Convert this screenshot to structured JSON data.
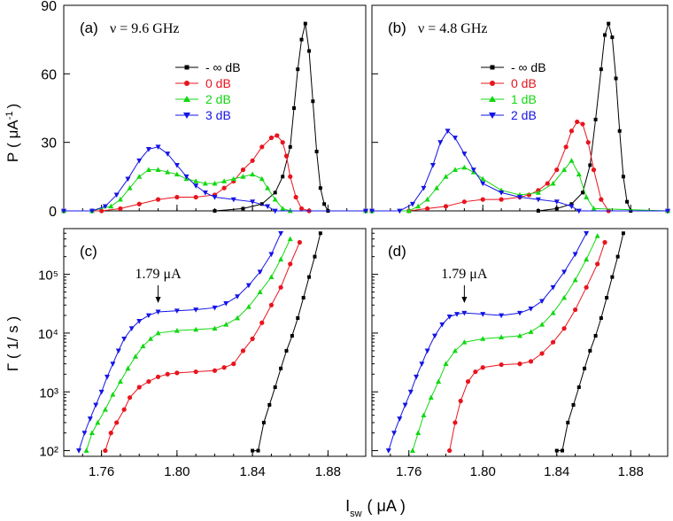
{
  "figure": {
    "shared_xlabel": "I",
    "shared_xlabel_sub": "sw",
    "shared_xlabel_unit": "( μA )",
    "top_ylabel": "P",
    "top_ylabel_unit_open": "( μA",
    "top_ylabel_unit_sup": "-1",
    "top_ylabel_unit_close": ")",
    "bottom_ylabel": "Γ ( 1/ s )",
    "colors": {
      "-inf": "#000000",
      "p0": "#e8141e",
      "p1": "#12d812",
      "p2": "#1414e6"
    }
  },
  "chart_data": [
    {
      "id": "a",
      "type": "line",
      "panel_label": "(a)",
      "freq_label": "ν = 9.6 GHz",
      "xlim": [
        1.74,
        1.9
      ],
      "ylim": [
        0,
        90
      ],
      "yticks": [
        "0",
        "30",
        "60",
        "90"
      ],
      "xticks": [],
      "legend_position": "upper-center",
      "series": [
        {
          "name": "- ∞ dB",
          "color": "#000000",
          "marker": "square",
          "x": [
            1.74,
            1.82,
            1.835,
            1.845,
            1.852,
            1.856,
            1.86,
            1.862,
            1.864,
            1.866,
            1.868,
            1.87,
            1.872,
            1.874,
            1.876,
            1.878,
            1.88,
            1.9
          ],
          "y": [
            0,
            0,
            1,
            3,
            8,
            15,
            28,
            45,
            62,
            75,
            82,
            70,
            48,
            26,
            10,
            3,
            0,
            0
          ]
        },
        {
          "name": "0 dB",
          "color": "#e8141e",
          "marker": "circle",
          "x": [
            1.74,
            1.76,
            1.77,
            1.78,
            1.79,
            1.8,
            1.81,
            1.82,
            1.825,
            1.83,
            1.835,
            1.84,
            1.845,
            1.85,
            1.853,
            1.856,
            1.858,
            1.86,
            1.863,
            1.866,
            1.87,
            1.9
          ],
          "y": [
            0,
            0,
            1,
            3,
            5,
            6,
            6,
            7,
            10,
            13,
            18,
            22,
            28,
            32,
            33,
            30,
            24,
            15,
            6,
            1,
            0,
            0
          ]
        },
        {
          "name": "2 dB",
          "color": "#12d812",
          "marker": "triangle-up",
          "x": [
            1.74,
            1.755,
            1.765,
            1.77,
            1.775,
            1.78,
            1.785,
            1.79,
            1.795,
            1.8,
            1.805,
            1.81,
            1.815,
            1.82,
            1.825,
            1.83,
            1.835,
            1.84,
            1.845,
            1.848,
            1.852,
            1.856,
            1.86,
            1.9
          ],
          "y": [
            0,
            0,
            2,
            5,
            10,
            15,
            18,
            18,
            17,
            16,
            14,
            13,
            12,
            12,
            13,
            14,
            15,
            16,
            14,
            10,
            5,
            1,
            0,
            0
          ]
        },
        {
          "name": "3 dB",
          "color": "#1414e6",
          "marker": "triangle-down",
          "x": [
            1.74,
            1.755,
            1.762,
            1.768,
            1.774,
            1.78,
            1.785,
            1.79,
            1.795,
            1.8,
            1.805,
            1.81,
            1.815,
            1.82,
            1.83,
            1.84,
            1.848,
            1.852,
            1.9
          ],
          "y": [
            0,
            0,
            2,
            7,
            14,
            22,
            27,
            28,
            25,
            20,
            15,
            11,
            8,
            6,
            5,
            4,
            2,
            0,
            0
          ]
        }
      ]
    },
    {
      "id": "b",
      "type": "line",
      "panel_label": "(b)",
      "freq_label": "ν = 4.8 GHz",
      "xlim": [
        1.74,
        1.9
      ],
      "ylim": [
        0,
        90
      ],
      "yticks": [],
      "xticks": [],
      "legend_position": "upper-right",
      "series": [
        {
          "name": "- ∞ dB",
          "color": "#000000",
          "marker": "square",
          "x": [
            1.74,
            1.83,
            1.84,
            1.848,
            1.854,
            1.858,
            1.861,
            1.864,
            1.866,
            1.868,
            1.87,
            1.872,
            1.874,
            1.876,
            1.878,
            1.88,
            1.9
          ],
          "y": [
            0,
            0,
            1,
            3,
            8,
            20,
            40,
            62,
            77,
            82,
            76,
            58,
            35,
            15,
            4,
            0,
            0
          ]
        },
        {
          "name": "0 dB",
          "color": "#e8141e",
          "marker": "circle",
          "x": [
            1.74,
            1.76,
            1.77,
            1.78,
            1.79,
            1.8,
            1.81,
            1.82,
            1.825,
            1.83,
            1.835,
            1.84,
            1.845,
            1.848,
            1.851,
            1.854,
            1.857,
            1.86,
            1.864,
            1.868,
            1.9
          ],
          "y": [
            0,
            0,
            1,
            2,
            4,
            5,
            5,
            6,
            7,
            9,
            12,
            18,
            28,
            35,
            39,
            38,
            30,
            18,
            5,
            0,
            0
          ]
        },
        {
          "name": "1 dB",
          "color": "#12d812",
          "marker": "triangle-up",
          "x": [
            1.74,
            1.76,
            1.765,
            1.77,
            1.775,
            1.78,
            1.785,
            1.79,
            1.795,
            1.8,
            1.81,
            1.82,
            1.83,
            1.838,
            1.844,
            1.848,
            1.852,
            1.856,
            1.86,
            1.9
          ],
          "y": [
            0,
            0,
            2,
            5,
            10,
            15,
            18,
            19,
            17,
            14,
            9,
            7,
            8,
            12,
            18,
            22,
            16,
            6,
            1,
            0
          ]
        },
        {
          "name": "2 dB",
          "color": "#1414e6",
          "marker": "triangle-down",
          "x": [
            1.74,
            1.755,
            1.762,
            1.768,
            1.773,
            1.777,
            1.781,
            1.785,
            1.79,
            1.795,
            1.8,
            1.81,
            1.82,
            1.83,
            1.84,
            1.848,
            1.852,
            1.9
          ],
          "y": [
            0,
            0,
            3,
            10,
            20,
            30,
            35,
            32,
            25,
            18,
            12,
            8,
            6,
            5,
            4,
            2,
            0,
            0
          ]
        }
      ]
    },
    {
      "id": "c",
      "type": "line",
      "scale": "log",
      "panel_label": "(c)",
      "annotation": "1.79 μA",
      "annotation_x": 1.79,
      "xlim": [
        1.74,
        1.9
      ],
      "ylim": [
        80,
        600000
      ],
      "yticks": [
        "10²",
        "10³",
        "10⁴",
        "10⁵"
      ],
      "xticks": [
        "1.76",
        "1.80",
        "1.84",
        "1.88"
      ],
      "series": [
        {
          "name": "- ∞ dB",
          "color": "#000000",
          "marker": "square",
          "x": [
            1.84,
            1.843,
            1.846,
            1.849,
            1.852,
            1.855,
            1.858,
            1.861,
            1.864,
            1.867,
            1.87,
            1.873,
            1.876
          ],
          "y": [
            100,
            100,
            300,
            600,
            1200,
            2500,
            5000,
            9000,
            18000,
            40000,
            90000,
            200000,
            500000
          ]
        },
        {
          "name": "0 dB",
          "color": "#e8141e",
          "marker": "circle",
          "x": [
            1.762,
            1.765,
            1.768,
            1.772,
            1.775,
            1.78,
            1.785,
            1.79,
            1.795,
            1.8,
            1.81,
            1.82,
            1.825,
            1.83,
            1.835,
            1.84,
            1.845,
            1.85,
            1.855,
            1.86,
            1.865
          ],
          "y": [
            100,
            200,
            300,
            500,
            800,
            1200,
            1500,
            1800,
            2000,
            2100,
            2200,
            2300,
            2600,
            3000,
            5000,
            8000,
            15000,
            30000,
            60000,
            150000,
            350000
          ]
        },
        {
          "name": "2 dB",
          "color": "#12d812",
          "marker": "triangle-up",
          "x": [
            1.752,
            1.755,
            1.758,
            1.762,
            1.766,
            1.77,
            1.774,
            1.778,
            1.782,
            1.786,
            1.79,
            1.8,
            1.81,
            1.82,
            1.826,
            1.832,
            1.838,
            1.844,
            1.85,
            1.855,
            1.86
          ],
          "y": [
            100,
            200,
            300,
            500,
            900,
            1500,
            2500,
            4000,
            6000,
            8000,
            10000,
            11000,
            11500,
            12000,
            14000,
            18000,
            28000,
            50000,
            90000,
            180000,
            400000
          ]
        },
        {
          "name": "3 dB",
          "color": "#1414e6",
          "marker": "triangle-down",
          "x": [
            1.748,
            1.751,
            1.754,
            1.757,
            1.76,
            1.763,
            1.766,
            1.769,
            1.772,
            1.776,
            1.78,
            1.785,
            1.79,
            1.8,
            1.81,
            1.82,
            1.826,
            1.832,
            1.838,
            1.844,
            1.85,
            1.855
          ],
          "y": [
            100,
            200,
            350,
            600,
            1000,
            1800,
            3000,
            5000,
            8000,
            12000,
            16000,
            20000,
            23000,
            24000,
            25000,
            27000,
            32000,
            42000,
            65000,
            110000,
            220000,
            500000
          ]
        }
      ]
    },
    {
      "id": "d",
      "type": "line",
      "scale": "log",
      "panel_label": "(d)",
      "annotation": "1.79 μA",
      "annotation_x": 1.79,
      "xlim": [
        1.74,
        1.9
      ],
      "ylim": [
        80,
        600000
      ],
      "yticks": [],
      "xticks": [
        "1.76",
        "1.80",
        "1.84",
        "1.88"
      ],
      "series": [
        {
          "name": "- ∞ dB",
          "color": "#000000",
          "marker": "square",
          "x": [
            1.84,
            1.843,
            1.846,
            1.849,
            1.852,
            1.855,
            1.858,
            1.861,
            1.864,
            1.867,
            1.87,
            1.873,
            1.876
          ],
          "y": [
            100,
            100,
            300,
            600,
            1200,
            2500,
            5000,
            9000,
            18000,
            40000,
            90000,
            200000,
            500000
          ]
        },
        {
          "name": "0 dB",
          "color": "#e8141e",
          "marker": "circle",
          "x": [
            1.782,
            1.785,
            1.788,
            1.792,
            1.796,
            1.8,
            1.81,
            1.82,
            1.826,
            1.832,
            1.838,
            1.844,
            1.85,
            1.856,
            1.862,
            1.866
          ],
          "y": [
            100,
            300,
            700,
            1500,
            2200,
            2600,
            2900,
            3000,
            3300,
            4500,
            7000,
            12000,
            25000,
            60000,
            150000,
            350000
          ]
        },
        {
          "name": "1 dB",
          "color": "#12d812",
          "marker": "triangle-up",
          "x": [
            1.762,
            1.765,
            1.768,
            1.772,
            1.776,
            1.78,
            1.785,
            1.79,
            1.8,
            1.81,
            1.82,
            1.826,
            1.832,
            1.838,
            1.844,
            1.85,
            1.856,
            1.862
          ],
          "y": [
            100,
            200,
            400,
            800,
            1500,
            3000,
            5000,
            7000,
            8000,
            8500,
            9000,
            10500,
            14000,
            22000,
            40000,
            80000,
            180000,
            450000
          ]
        },
        {
          "name": "2 dB",
          "color": "#1414e6",
          "marker": "triangle-down",
          "x": [
            1.749,
            1.752,
            1.755,
            1.758,
            1.761,
            1.764,
            1.767,
            1.77,
            1.774,
            1.778,
            1.782,
            1.786,
            1.79,
            1.8,
            1.81,
            1.82,
            1.826,
            1.832,
            1.838,
            1.844,
            1.85,
            1.856
          ],
          "y": [
            100,
            200,
            350,
            600,
            1000,
            1800,
            3000,
            5000,
            9000,
            14000,
            19000,
            21000,
            22000,
            21000,
            20000,
            22000,
            26000,
            35000,
            60000,
            110000,
            220000,
            500000
          ]
        }
      ]
    }
  ]
}
